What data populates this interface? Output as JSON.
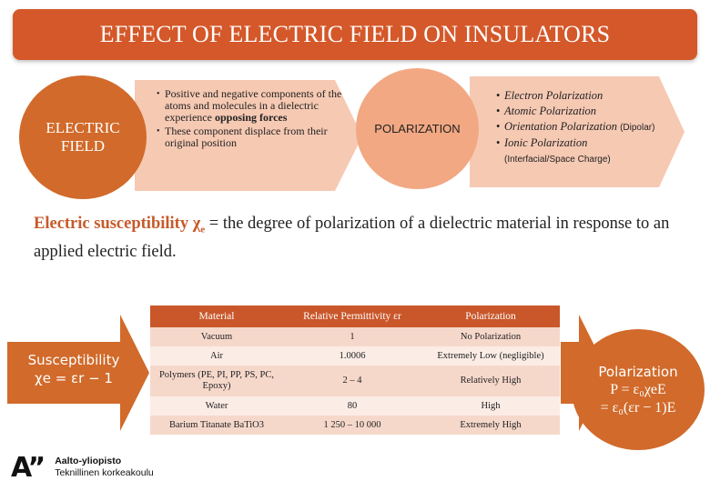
{
  "title": "EFFECT OF ELECTRIC FIELD ON INSULATORS",
  "electric_field_circle": {
    "line1": "ELECTRIC",
    "line2": "FIELD"
  },
  "effects": {
    "bullet1_pre": "Positive and negative components of the atoms and molecules in a dielectric experience ",
    "bullet1_bold": "opposing forces",
    "bullet2": "These component displace from their original position"
  },
  "polarization_circle": "POLARIZATION",
  "polarization_types": [
    {
      "label": "Electron Polarization",
      "sub": ""
    },
    {
      "label": "Atomic Polarization",
      "sub": ""
    },
    {
      "label": "Orientation Polarization",
      "sub": "(Dipolar)"
    },
    {
      "label": "Ionic Polarization",
      "sub": "(Interfacial/Space Charge)"
    }
  ],
  "definition": {
    "term": "Electric susceptibility χ",
    "term_sub": "e",
    "rest": " = the degree of polarization of a dielectric material in response to an applied electric field."
  },
  "susceptibility": {
    "line1": "Susceptibility",
    "formula": "χe = εr − 1"
  },
  "polarization_formula": {
    "line1": "Polarization",
    "line2": "P = ε₀χeE",
    "line3": "= ε₀(εr − 1)E"
  },
  "table": {
    "headers": [
      "Material",
      "Relative Permittivity εr",
      "Polarization"
    ],
    "rows": [
      [
        "Vacuum",
        "1",
        "No Polarization"
      ],
      [
        "Air",
        "1.0006",
        "Extremely Low (negligible)"
      ],
      [
        "Polymers (PE, PI, PP, PS, PC, Epoxy)",
        "2 – 4",
        "Relatively High"
      ],
      [
        "Water",
        "80",
        "High"
      ],
      [
        "Barium Titanate BaTiO3",
        "1 250 – 10 000",
        "Extremely High"
      ]
    ]
  },
  "logo": {
    "mark": "A”",
    "line1": "Aalto-yliopisto",
    "line2": "Teknillinen korkeakoulu"
  },
  "colors": {
    "accent": "#d4582a",
    "circle": "#d16a2a",
    "arrow": "#f6c9b3",
    "pol_circle": "#f2a882",
    "table_header": "#c9572a"
  }
}
